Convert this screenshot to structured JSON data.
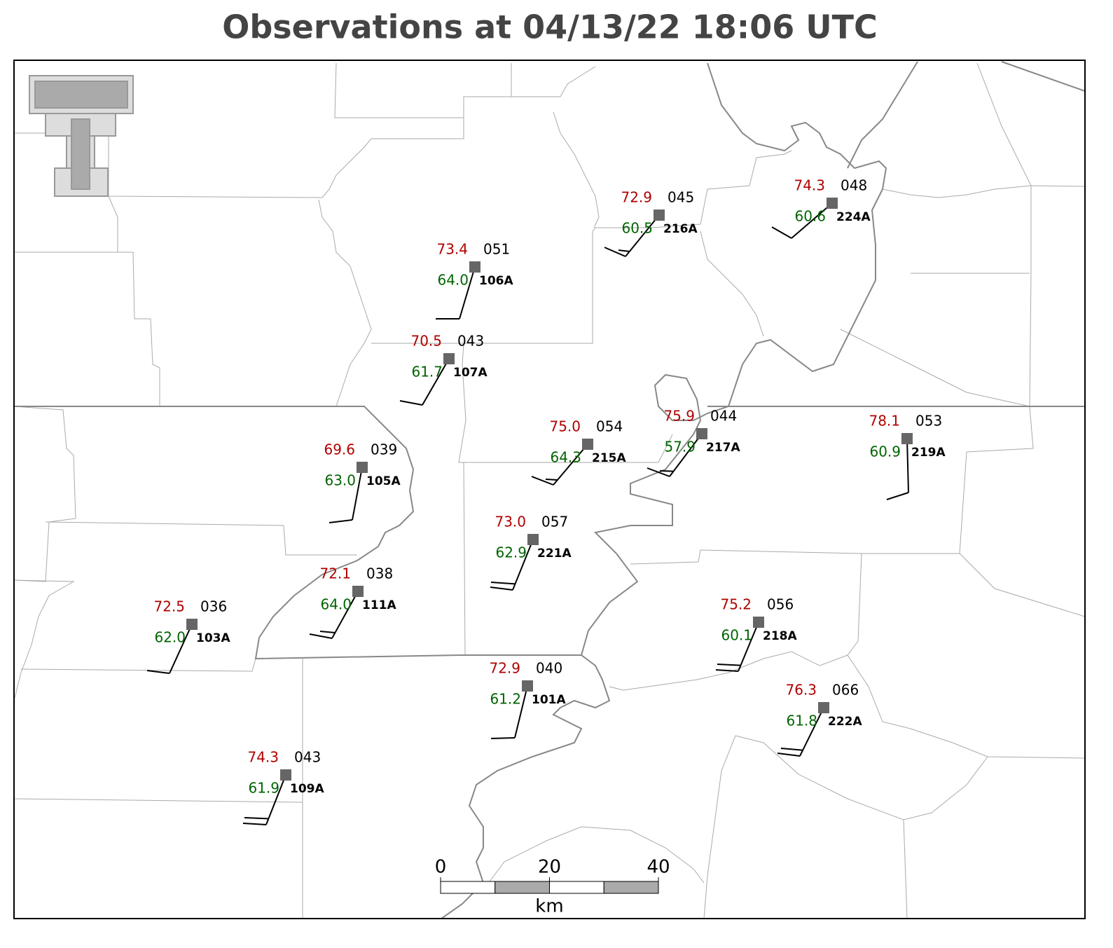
{
  "title": "Observations at 04/13/22 18:06 UTC",
  "stations": [
    {
      "id": "106A",
      "temperature": "73.4",
      "dewpoint": "64.0",
      "pressure": "051"
    },
    {
      "id": "107A",
      "temperature": "70.5",
      "dewpoint": "61.7",
      "pressure": "043"
    },
    {
      "id": "216A",
      "temperature": "72.9",
      "dewpoint": "60.5",
      "pressure": "045"
    },
    {
      "id": "224A",
      "temperature": "74.3",
      "dewpoint": "60.6",
      "pressure": "048"
    },
    {
      "id": "105A",
      "temperature": "69.6",
      "dewpoint": "63.0",
      "pressure": "039"
    },
    {
      "id": "215A",
      "temperature": "75.0",
      "dewpoint": "64.3",
      "pressure": "054"
    },
    {
      "id": "217A",
      "temperature": "75.9",
      "dewpoint": "57.9",
      "pressure": "044"
    },
    {
      "id": "219A",
      "temperature": "78.1",
      "dewpoint": "60.9",
      "pressure": "053"
    },
    {
      "id": "221A",
      "temperature": "73.0",
      "dewpoint": "62.9",
      "pressure": "057"
    },
    {
      "id": "111A",
      "temperature": "72.1",
      "dewpoint": "64.0",
      "pressure": "038"
    },
    {
      "id": "103A",
      "temperature": "72.5",
      "dewpoint": "62.0",
      "pressure": "036"
    },
    {
      "id": "218A",
      "temperature": "75.2",
      "dewpoint": "60.1",
      "pressure": "056"
    },
    {
      "id": "101A",
      "temperature": "72.9",
      "dewpoint": "61.2",
      "pressure": "040"
    },
    {
      "id": "222A",
      "temperature": "76.3",
      "dewpoint": "61.8",
      "pressure": "066"
    },
    {
      "id": "109A",
      "temperature": "74.3",
      "dewpoint": "61.9",
      "pressure": "043"
    }
  ],
  "scale_bar": {
    "ticks": [
      0,
      20,
      40
    ],
    "unit": "km"
  }
}
